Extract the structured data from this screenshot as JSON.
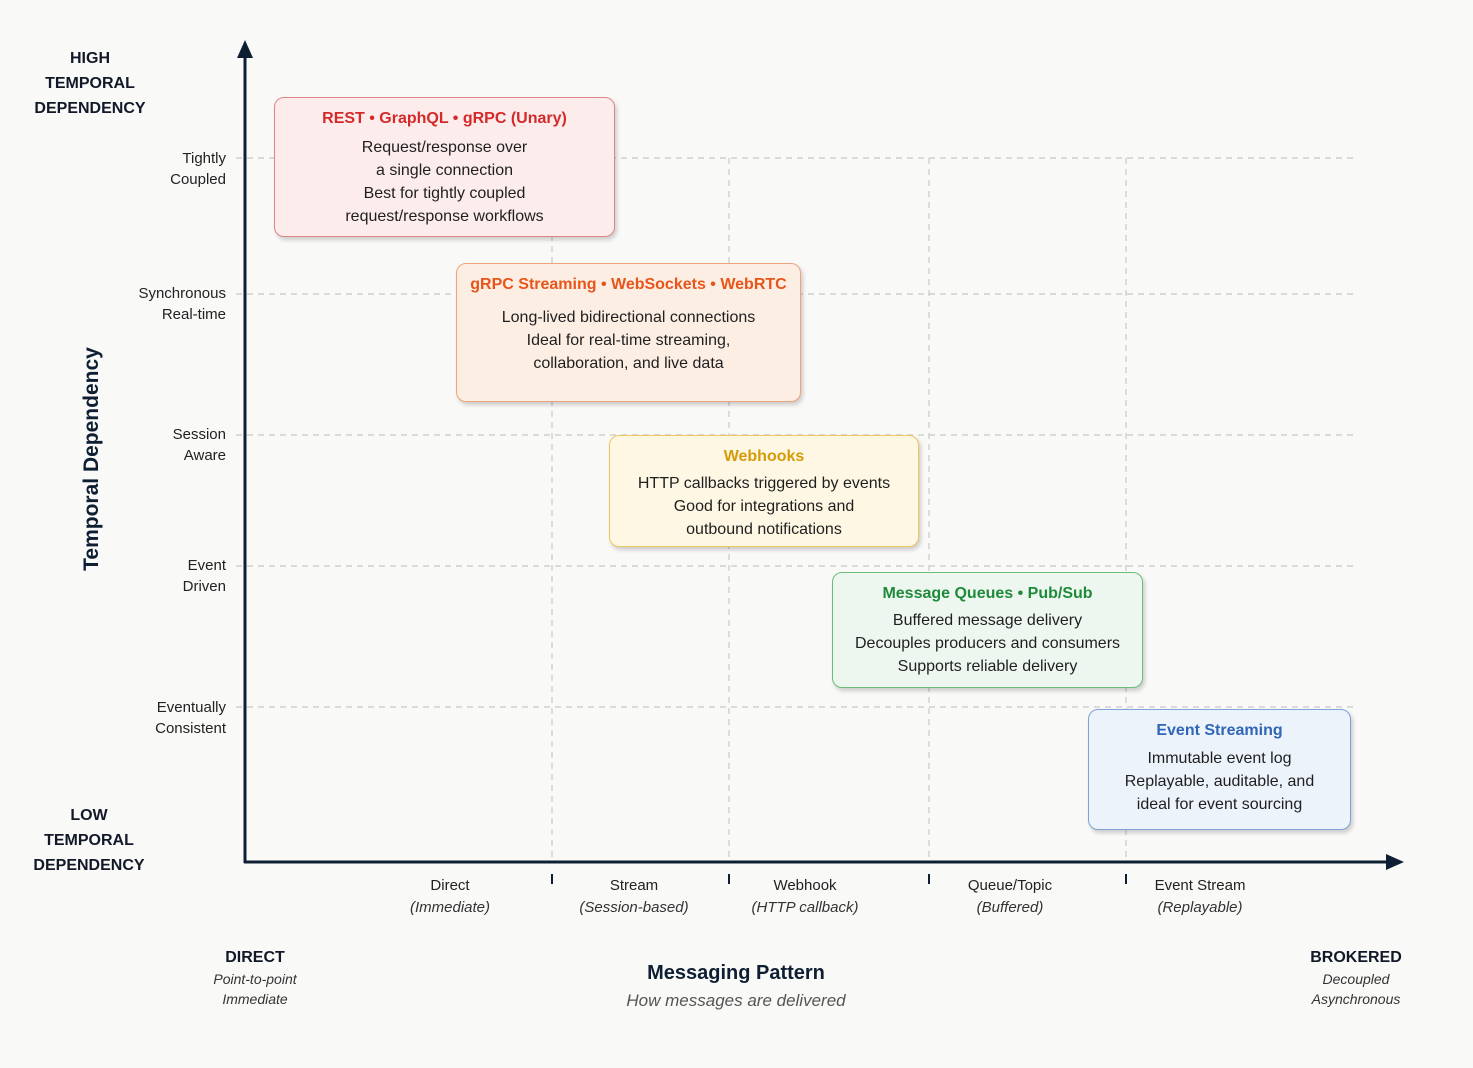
{
  "colors": {
    "axis": "#0f1f33",
    "grid": "#c8c8c8",
    "rest": "#d42a2a",
    "streaming": "#e8551a",
    "webhooks": "#d69b08",
    "queues": "#1e8a3a",
    "event_streaming": "#2f66b7"
  },
  "y_axis": {
    "title": "Temporal Dependency",
    "high_label": [
      "HIGH",
      "TEMPORAL",
      "DEPENDENCY"
    ],
    "low_label": [
      "LOW",
      "TEMPORAL",
      "DEPENDENCY"
    ],
    "ticks": [
      [
        "Tightly",
        "Coupled"
      ],
      [
        "Synchronous",
        "Real-time"
      ],
      [
        "Session",
        "Aware"
      ],
      [
        "Event",
        "Driven"
      ],
      [
        "Eventually",
        "Consistent"
      ]
    ]
  },
  "x_axis": {
    "title": "Messaging Pattern",
    "subtitle": "How messages are delivered",
    "left_end": {
      "heading": "DIRECT",
      "lines": [
        "Point-to-point",
        "Immediate"
      ]
    },
    "right_end": {
      "heading": "BROKERED",
      "lines": [
        "Decoupled",
        "Asynchronous"
      ]
    },
    "ticks": [
      {
        "label": "Direct",
        "sub": "(Immediate)"
      },
      {
        "label": "Stream",
        "sub": "(Session-based)"
      },
      {
        "label": "Webhook",
        "sub": "(HTTP callback)"
      },
      {
        "label": "Queue/Topic",
        "sub": "(Buffered)"
      },
      {
        "label": "Event Stream",
        "sub": "(Replayable)"
      }
    ]
  },
  "boxes": [
    {
      "title": "REST • GraphQL • gRPC (Unary)",
      "lines": [
        "Request/response over",
        "a single connection",
        "Best for tightly coupled",
        "request/response workflows"
      ]
    },
    {
      "title": "gRPC Streaming • WebSockets • WebRTC",
      "lines": [
        "Long-lived bidirectional connections",
        "Ideal for real-time streaming,",
        "collaboration, and live data"
      ]
    },
    {
      "title": "Webhooks",
      "lines": [
        "HTTP callbacks triggered by events",
        "Good for integrations and",
        "outbound notifications"
      ]
    },
    {
      "title": "Message Queues • Pub/Sub",
      "lines": [
        "Buffered message delivery",
        "Decouples producers and consumers",
        "Supports reliable delivery"
      ]
    },
    {
      "title": "Event Streaming",
      "lines": [
        "Immutable event log",
        "Replayable, auditable, and",
        "ideal for event sourcing"
      ]
    }
  ]
}
